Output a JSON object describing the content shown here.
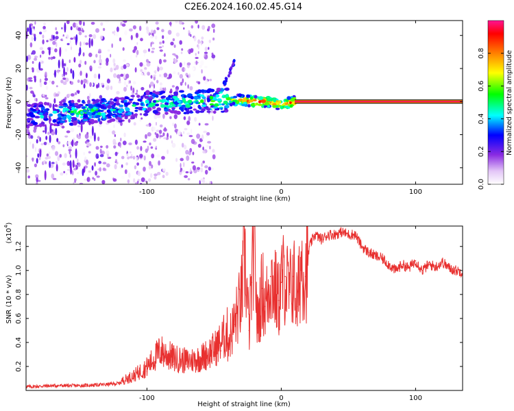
{
  "title": "C2E6.2024.160.02.45.G14",
  "chart_data": [
    {
      "type": "heatmap",
      "name": "spectrogram",
      "xlabel": "Height of straight line (km)",
      "ylabel": "Frequency (Hz)",
      "xlim": [
        -190,
        135
      ],
      "ylim": [
        -50,
        49
      ],
      "xticks": [
        -100,
        0,
        100
      ],
      "xtick_labels": [
        "-100",
        "0",
        "100"
      ],
      "yticks": [
        -40,
        -20,
        0,
        20,
        40
      ],
      "ytick_labels": [
        "-40",
        "-20",
        "0",
        "20",
        "40"
      ],
      "colorbar": {
        "label": "Normalized spectral amplitude",
        "range": [
          0,
          1
        ],
        "ticks": [
          0.0,
          0.2,
          0.4,
          0.6,
          0.8
        ],
        "tick_labels": [
          "0.0",
          "0.2",
          "0.4",
          "0.6",
          "0.8"
        ],
        "colors": [
          "#ffffff",
          "#e3c6f7",
          "#8a2be2",
          "#0000ff",
          "#00ffff",
          "#00ff00",
          "#ffff00",
          "#ff8000",
          "#ff0000",
          "#ff1493"
        ]
      },
      "ridge": [
        {
          "x": -180,
          "freq": -8,
          "amp": 0.35
        },
        {
          "x": -160,
          "freq": -7,
          "amp": 0.45
        },
        {
          "x": -140,
          "freq": -6,
          "amp": 0.45
        },
        {
          "x": -120,
          "freq": -5,
          "amp": 0.4
        },
        {
          "x": -100,
          "freq": -1,
          "amp": 0.4
        },
        {
          "x": -80,
          "freq": 0,
          "amp": 0.45
        },
        {
          "x": -60,
          "freq": 0,
          "amp": 0.5
        },
        {
          "x": -40,
          "freq": 1,
          "amp": 0.55
        },
        {
          "x": -30,
          "freq": 1,
          "amp": 0.8
        },
        {
          "x": -20,
          "freq": 0,
          "amp": 0.85
        },
        {
          "x": -10,
          "freq": 0,
          "amp": 0.85
        },
        {
          "x": 0,
          "freq": -2,
          "amp": 0.8
        },
        {
          "x": 10,
          "freq": 0,
          "amp": 0.85
        },
        {
          "x": 30,
          "freq": 0,
          "amp": 0.9
        },
        {
          "x": 60,
          "freq": 0,
          "amp": 0.9
        },
        {
          "x": 100,
          "freq": 0,
          "amp": 0.9
        },
        {
          "x": 135,
          "freq": 0,
          "amp": 0.9
        }
      ]
    },
    {
      "type": "line",
      "name": "snr",
      "xlabel": "Height of straight line (km)",
      "ylabel": "SNR (10 * v/v)",
      "yscale_label": "(x10",
      "yscale_exp": "4",
      "ylabel_unit": ")",
      "xlim": [
        -190,
        135
      ],
      "ylim": [
        0,
        1.37
      ],
      "xticks": [
        -100,
        0,
        100
      ],
      "xtick_labels": [
        "-100",
        "0",
        "100"
      ],
      "yticks": [
        0.2,
        0.4,
        0.6,
        0.8,
        1.0,
        1.2
      ],
      "ytick_labels": [
        "0.2",
        "0.4",
        "0.6",
        "0.8",
        "1.0",
        "1.2"
      ],
      "color": "#e8302f",
      "x": [
        -190,
        -170,
        -150,
        -130,
        -120,
        -110,
        -100,
        -90,
        -80,
        -70,
        -60,
        -50,
        -45,
        -40,
        -35,
        -30,
        -27,
        -24,
        -22,
        -20,
        -18,
        -16,
        -14,
        -12,
        -10,
        -8,
        -5,
        -2,
        0,
        3,
        6,
        9,
        12,
        15,
        18,
        21,
        25,
        30,
        35,
        40,
        45,
        50,
        55,
        60,
        65,
        70,
        75,
        80,
        85,
        90,
        95,
        100,
        105,
        110,
        115,
        120,
        125,
        130,
        135
      ],
      "y": [
        0.03,
        0.04,
        0.04,
        0.05,
        0.06,
        0.1,
        0.16,
        0.27,
        0.22,
        0.2,
        0.22,
        0.28,
        0.33,
        0.4,
        0.55,
        0.75,
        1.1,
        0.5,
        0.9,
        1.37,
        0.55,
        0.7,
        0.85,
        0.7,
        0.8,
        0.95,
        0.85,
        0.75,
        0.9,
        0.95,
        0.8,
        0.95,
        0.7,
        1.1,
        0.95,
        1.2,
        1.3,
        1.26,
        1.3,
        1.3,
        1.32,
        1.3,
        1.3,
        1.2,
        1.15,
        1.12,
        1.1,
        1.05,
        1.0,
        1.05,
        1.02,
        1.08,
        1.0,
        1.05,
        1.03,
        1.07,
        1.02,
        1.0,
        0.99
      ]
    }
  ]
}
